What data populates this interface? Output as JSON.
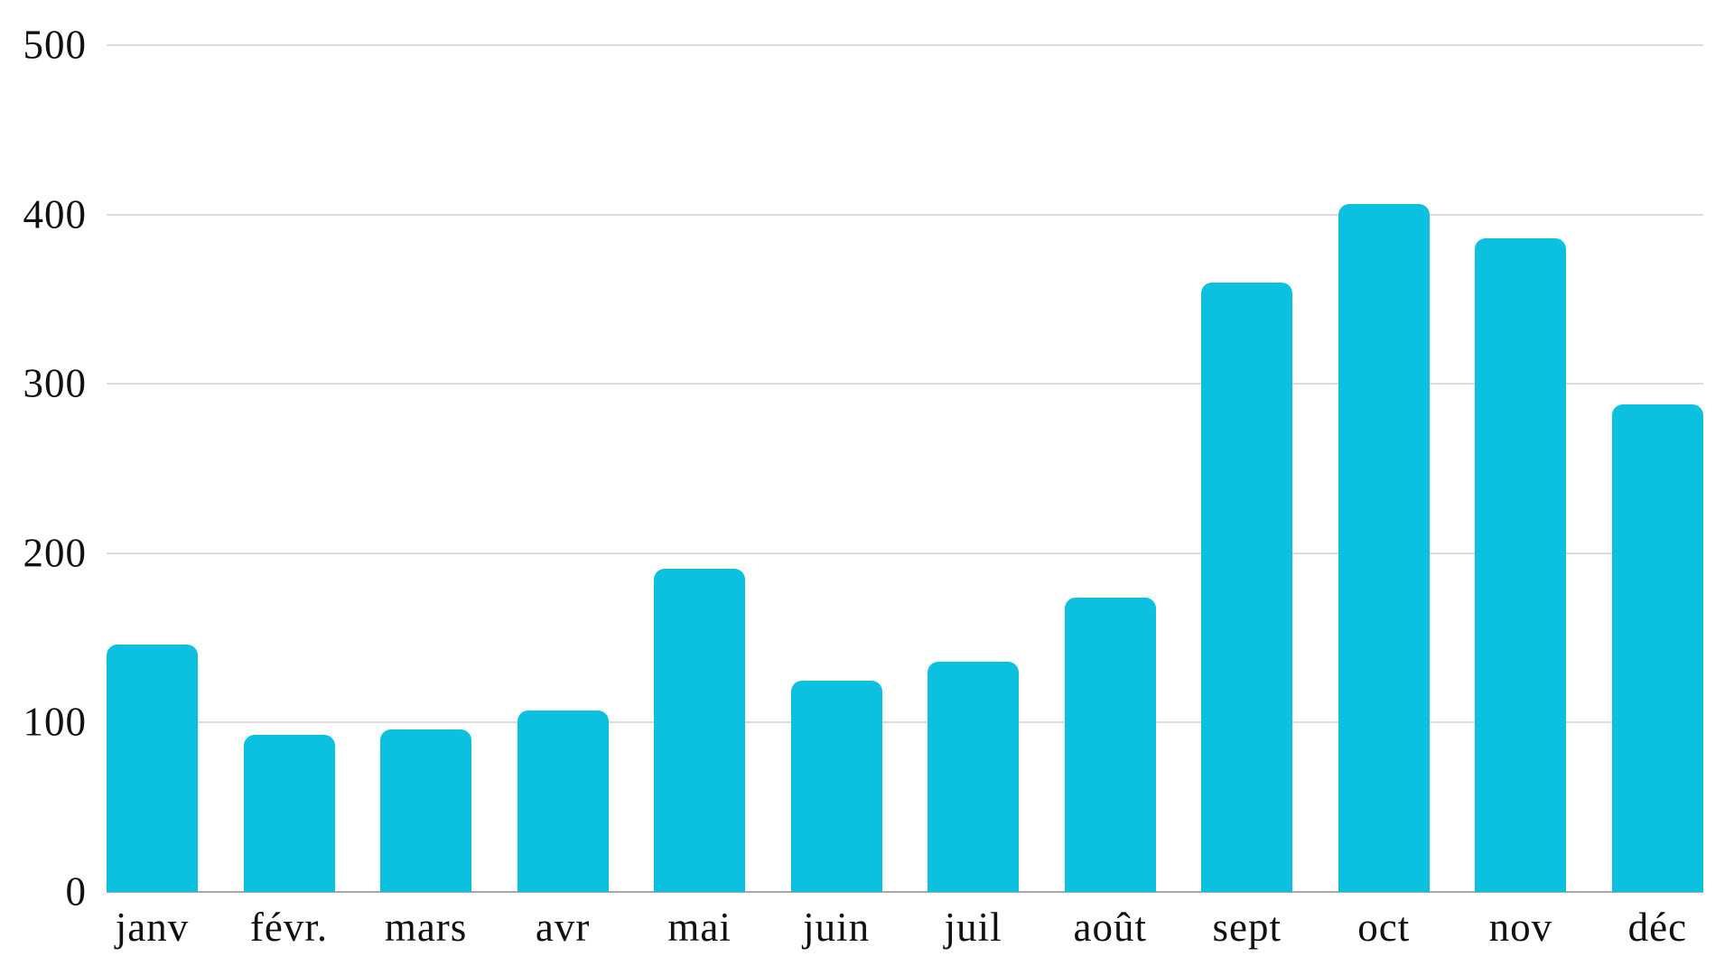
{
  "chart_data": {
    "type": "bar",
    "title": "",
    "categories": [
      "janv",
      "févr.",
      "mars",
      "avr",
      "mai",
      "juin",
      "juil",
      "août",
      "sept",
      "oct",
      "nov",
      "déc"
    ],
    "values": [
      146,
      93,
      96,
      107,
      191,
      125,
      136,
      174,
      360,
      406,
      386,
      288
    ],
    "y_ticks": [
      0,
      100,
      200,
      300,
      400,
      500
    ],
    "ylim": [
      0,
      500
    ],
    "xlabel": "",
    "ylabel": "",
    "grid": true,
    "legend": "none",
    "bar_color": "#0cc0df",
    "gridline_color": "#dcdcdc",
    "axis_line_color": "#a6a6a6",
    "text_color": "#111111",
    "background": "#ffffff"
  }
}
